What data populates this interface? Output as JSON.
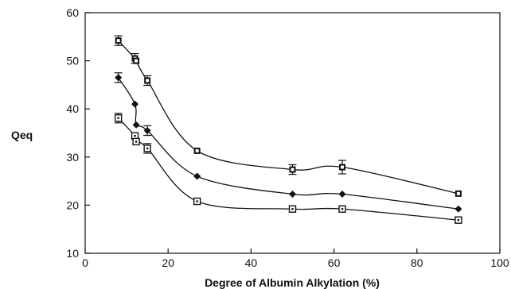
{
  "chart_data": {
    "type": "scatter",
    "title": "",
    "xlabel": "Degree of Albumin Alkylation (%)",
    "ylabel": "Qeq",
    "xlim": [
      0,
      100
    ],
    "ylim": [
      10,
      60
    ],
    "xticks": [
      0,
      20,
      40,
      60,
      80,
      100
    ],
    "yticks": [
      10,
      20,
      30,
      40,
      50,
      60
    ],
    "grid": false,
    "legend": "none",
    "series": [
      {
        "marker": "filled-square",
        "fitted_curve": true,
        "points": [
          {
            "x": 8,
            "y": 54.2,
            "err": 1.0
          },
          {
            "x": 12,
            "y": 50.5,
            "err": 1.0
          },
          {
            "x": 12.3,
            "y": 50.0,
            "err": 0
          },
          {
            "x": 15,
            "y": 45.9,
            "err": 1.0
          },
          {
            "x": 27,
            "y": 31.3,
            "err": 0
          },
          {
            "x": 50,
            "y": 27.4,
            "err": 1.0
          },
          {
            "x": 62,
            "y": 27.9,
            "err": 1.4
          },
          {
            "x": 90,
            "y": 22.4,
            "err": 0
          }
        ]
      },
      {
        "marker": "filled-diamond",
        "fitted_curve": true,
        "points": [
          {
            "x": 8,
            "y": 46.5,
            "err": 1.0
          },
          {
            "x": 12,
            "y": 41.0,
            "err": 0
          },
          {
            "x": 12.3,
            "y": 36.7,
            "err": 0
          },
          {
            "x": 15,
            "y": 35.5,
            "err": 1.0
          },
          {
            "x": 27,
            "y": 26.0,
            "err": 0
          },
          {
            "x": 50,
            "y": 22.3,
            "err": 0
          },
          {
            "x": 62,
            "y": 22.3,
            "err": 0
          },
          {
            "x": 90,
            "y": 19.2,
            "err": 0
          }
        ]
      },
      {
        "marker": "open-square",
        "fitted_curve": true,
        "points": [
          {
            "x": 8,
            "y": 38.1,
            "err": 1.0
          },
          {
            "x": 12,
            "y": 34.4,
            "err": 0
          },
          {
            "x": 12.3,
            "y": 33.2,
            "err": 0
          },
          {
            "x": 15,
            "y": 31.8,
            "err": 1.0
          },
          {
            "x": 27,
            "y": 20.8,
            "err": 0
          },
          {
            "x": 50,
            "y": 19.2,
            "err": 0
          },
          {
            "x": 62,
            "y": 19.2,
            "err": 0
          },
          {
            "x": 90,
            "y": 16.9,
            "err": 0
          }
        ]
      }
    ],
    "colors": {
      "ink": "#111111",
      "background": "#ffffff"
    }
  }
}
